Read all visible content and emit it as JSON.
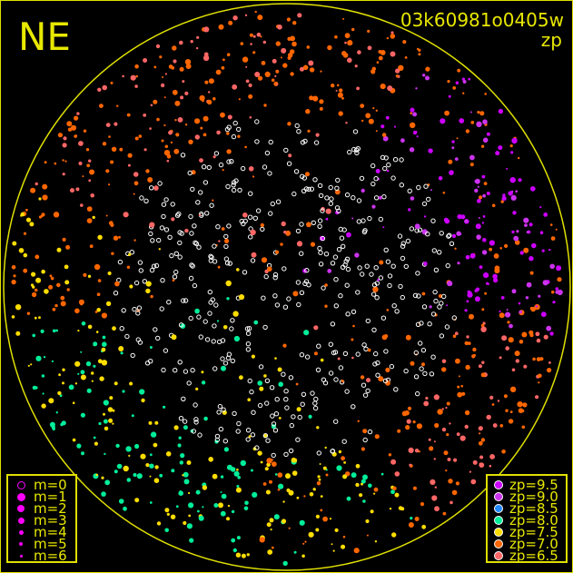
{
  "title": "03k60981o0405w",
  "direction_label": "NE",
  "color_key_label": "zp",
  "chart_data": {
    "type": "scatter",
    "title": "03k60981o0405w",
    "projection": "all-sky circle",
    "circle_color": "#e0e000",
    "background": "#000000",
    "grid": false,
    "magnitude_legend": {
      "placement": "bottom-left",
      "entries": [
        {
          "label": "m=0",
          "style": "open"
        },
        {
          "label": "m=1",
          "style": "filled"
        },
        {
          "label": "m=2",
          "style": "filled"
        },
        {
          "label": "m=3",
          "style": "filled"
        },
        {
          "label": "m=4",
          "style": "filled"
        },
        {
          "label": "m=5",
          "style": "filled"
        },
        {
          "label": "m=6",
          "style": "filled"
        }
      ],
      "color": "#ff00ff"
    },
    "zp_legend": {
      "placement": "bottom-right",
      "entries": [
        {
          "label": "zp=9.5",
          "value": 9.5,
          "color": "#cc00ff"
        },
        {
          "label": "zp=9.0",
          "value": 9.0,
          "color": "#cc33ee"
        },
        {
          "label": "zp=8.5",
          "value": 8.5,
          "color": "#2288ff"
        },
        {
          "label": "zp=8.0",
          "value": 8.0,
          "color": "#00ee99"
        },
        {
          "label": "zp=7.5",
          "value": 7.5,
          "color": "#ffdd00"
        },
        {
          "label": "zp=7.0",
          "value": 7.0,
          "color": "#ff6600"
        },
        {
          "label": "zp=6.5",
          "value": 6.5,
          "color": "#ff6666"
        }
      ]
    },
    "unmeasured_color": "#ffffff"
  }
}
